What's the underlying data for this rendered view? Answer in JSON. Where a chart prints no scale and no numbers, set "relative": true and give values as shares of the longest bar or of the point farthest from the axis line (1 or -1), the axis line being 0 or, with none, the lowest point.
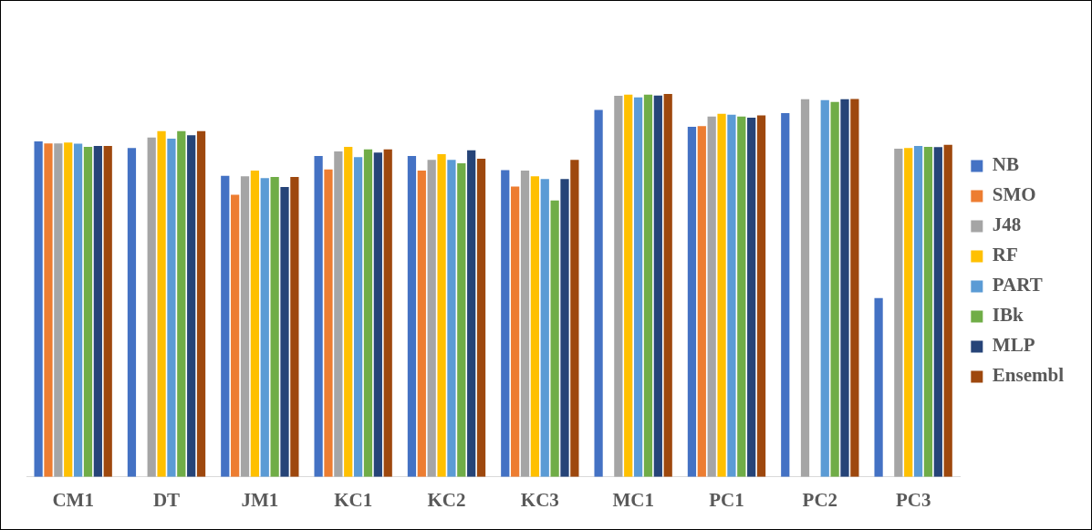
{
  "chart_data": {
    "type": "bar",
    "relative": true,
    "legend": "right",
    "grid": false,
    "categories": [
      "CM1",
      "DT",
      "JM1",
      "KC1",
      "KC2",
      "KC3",
      "MC1",
      "PC1",
      "PC2",
      "PC3"
    ],
    "series": [
      {
        "name": "NB",
        "color": "#4472c4",
        "values": [
          0.876,
          0.859,
          0.786,
          0.838,
          0.838,
          0.801,
          0.958,
          0.914,
          0.95,
          0.467
        ]
      },
      {
        "name": "SMO",
        "color": "#ed7d31",
        "values": [
          0.871,
          null,
          0.737,
          0.803,
          0.8,
          0.758,
          null,
          0.916,
          null,
          null
        ]
      },
      {
        "name": "J48",
        "color": "#a5a5a5",
        "values": [
          0.871,
          0.886,
          0.785,
          0.85,
          0.828,
          0.8,
          0.995,
          0.941,
          0.986,
          0.857
        ]
      },
      {
        "name": "RF",
        "color": "#ffc000",
        "values": [
          0.873,
          0.903,
          0.8,
          0.862,
          0.843,
          0.785,
          0.998,
          0.948,
          null,
          0.859
        ]
      },
      {
        "name": "PART",
        "color": "#5b9bd5",
        "values": [
          0.87,
          0.883,
          0.78,
          0.835,
          0.828,
          0.778,
          0.991,
          0.946,
          0.984,
          0.864
        ]
      },
      {
        "name": "IBk",
        "color": "#70ad47",
        "values": [
          0.862,
          0.903,
          0.783,
          0.855,
          0.819,
          0.722,
          0.998,
          0.941,
          0.979,
          0.862
        ]
      },
      {
        "name": "MLP",
        "color": "#264478",
        "values": [
          0.864,
          0.892,
          0.757,
          0.847,
          0.853,
          0.778,
          0.996,
          0.938,
          0.986,
          0.861
        ]
      },
      {
        "name": "Ensembl",
        "color": "#9e480e",
        "values": [
          0.864,
          0.903,
          0.783,
          0.855,
          0.831,
          0.828,
          1,
          0.944,
          0.987,
          0.867
        ]
      }
    ]
  }
}
